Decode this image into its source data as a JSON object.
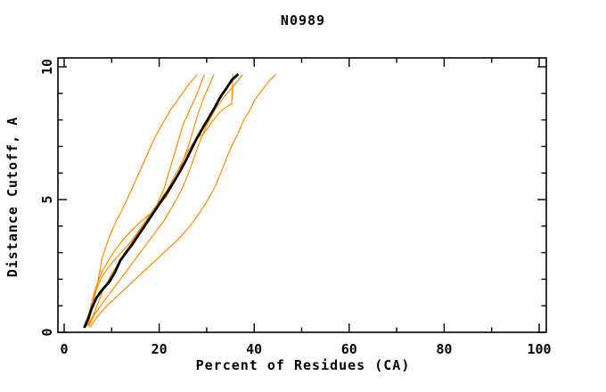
{
  "title": "N0989",
  "axes": {
    "xlabel": "Percent of Residues (CA)",
    "ylabel": "Distance Cutoff, A",
    "xlim": [
      0,
      100
    ],
    "ylim": [
      0,
      10
    ],
    "x_major_ticks": [
      0,
      20,
      40,
      60,
      80,
      100
    ],
    "x_minor_ticks": [
      10,
      30,
      50,
      70,
      90
    ],
    "x_tick_labels": [
      "0",
      "20",
      "40",
      "60",
      "80",
      "100"
    ],
    "y_major_ticks": [
      0,
      5,
      10
    ],
    "y_minor_ticks": [
      1,
      2,
      3,
      4,
      6,
      7,
      8,
      9
    ],
    "y_tick_labels": [
      "0",
      "5",
      "10"
    ]
  },
  "colors": {
    "orange_series": "#ff8c00",
    "black_series": "#000000"
  },
  "chart_data": {
    "type": "line",
    "title": "N0989",
    "xlabel": "Percent of Residues (CA)",
    "ylabel": "Distance Cutoff, A",
    "xlim": [
      0,
      100
    ],
    "ylim": [
      0,
      10
    ],
    "grid": false,
    "legend": "none",
    "series": [
      {
        "name": "orange-curve-1",
        "color": "#ff8c00",
        "width": 1.2,
        "points": [
          [
            5,
            0.3
          ],
          [
            6,
            1.0
          ],
          [
            7,
            1.8
          ],
          [
            8,
            2.8
          ],
          [
            9.5,
            3.6
          ],
          [
            11,
            4.2
          ],
          [
            12.7,
            4.8
          ],
          [
            14.5,
            5.5
          ],
          [
            16,
            6.1
          ],
          [
            17.5,
            6.7
          ],
          [
            19,
            7.3
          ],
          [
            20.5,
            7.8
          ],
          [
            22.5,
            8.4
          ],
          [
            24.5,
            8.9
          ],
          [
            26.5,
            9.4
          ],
          [
            28,
            9.7
          ]
        ]
      },
      {
        "name": "orange-curve-2",
        "color": "#ff8c00",
        "width": 1.2,
        "points": [
          [
            5,
            0.25
          ],
          [
            6.5,
            0.8
          ],
          [
            8,
            1.5
          ],
          [
            10,
            2.2
          ],
          [
            12.5,
            2.9
          ],
          [
            15,
            3.6
          ],
          [
            17.5,
            4.3
          ],
          [
            19.5,
            4.8
          ],
          [
            21,
            5.4
          ],
          [
            22,
            6.0
          ],
          [
            23,
            6.6
          ],
          [
            24,
            7.2
          ],
          [
            25,
            7.8
          ],
          [
            26.5,
            8.4
          ],
          [
            28,
            9.0
          ],
          [
            29.5,
            9.7
          ]
        ]
      },
      {
        "name": "orange-curve-3",
        "color": "#ff8c00",
        "width": 1.2,
        "points": [
          [
            4.5,
            0.2
          ],
          [
            5.5,
            0.9
          ],
          [
            6.5,
            1.6
          ],
          [
            8,
            2.3
          ],
          [
            10,
            2.9
          ],
          [
            12,
            3.4
          ],
          [
            14.5,
            3.9
          ],
          [
            17,
            4.3
          ],
          [
            19.5,
            4.7
          ],
          [
            21.5,
            5.1
          ],
          [
            23,
            5.6
          ],
          [
            24.3,
            6.1
          ],
          [
            25.3,
            6.6
          ],
          [
            26.3,
            7.1
          ],
          [
            27.3,
            7.7
          ],
          [
            28.3,
            8.3
          ],
          [
            29.3,
            8.8
          ],
          [
            30.3,
            9.2
          ],
          [
            31.5,
            9.7
          ]
        ]
      },
      {
        "name": "orange-curve-4",
        "color": "#ff8c00",
        "width": 1.2,
        "points": [
          [
            4.8,
            0.25
          ],
          [
            5.5,
            0.9
          ],
          [
            6.5,
            1.5
          ],
          [
            8,
            2.1
          ],
          [
            10,
            2.6
          ],
          [
            12,
            3.0
          ],
          [
            14,
            3.4
          ],
          [
            16,
            3.9
          ],
          [
            18,
            4.4
          ],
          [
            20,
            4.9
          ],
          [
            21.8,
            5.4
          ],
          [
            23.3,
            5.9
          ],
          [
            24.8,
            6.4
          ],
          [
            26.3,
            6.9
          ],
          [
            27.8,
            7.3
          ],
          [
            29.5,
            7.5
          ],
          [
            31,
            7.9
          ],
          [
            32.8,
            8.3
          ],
          [
            34.2,
            8.5
          ],
          [
            35.3,
            8.6
          ],
          [
            35.5,
            9.7
          ]
        ]
      },
      {
        "name": "orange-curve-5",
        "color": "#ff8c00",
        "width": 1.2,
        "points": [
          [
            5.2,
            0.25
          ],
          [
            6.5,
            0.7
          ],
          [
            8.5,
            1.2
          ],
          [
            11,
            1.8
          ],
          [
            13.5,
            2.4
          ],
          [
            16,
            3.0
          ],
          [
            18.5,
            3.6
          ],
          [
            21,
            4.2
          ],
          [
            23,
            4.8
          ],
          [
            24.8,
            5.4
          ],
          [
            26.2,
            6.0
          ],
          [
            27.4,
            6.6
          ],
          [
            28.6,
            7.2
          ],
          [
            30,
            7.8
          ],
          [
            31.8,
            8.4
          ],
          [
            33.8,
            8.9
          ],
          [
            35.8,
            9.3
          ],
          [
            37.5,
            9.7
          ]
        ]
      },
      {
        "name": "orange-curve-6",
        "color": "#ff8c00",
        "width": 1.2,
        "points": [
          [
            5.5,
            0.2
          ],
          [
            7,
            0.6
          ],
          [
            9,
            1.0
          ],
          [
            12,
            1.5
          ],
          [
            15,
            2.0
          ],
          [
            18,
            2.5
          ],
          [
            21,
            3.0
          ],
          [
            24,
            3.5
          ],
          [
            26.5,
            4.0
          ],
          [
            28.5,
            4.5
          ],
          [
            30.3,
            5.0
          ],
          [
            31.8,
            5.5
          ],
          [
            33.2,
            6.1
          ],
          [
            34.5,
            6.7
          ],
          [
            35.8,
            7.2
          ],
          [
            36.6,
            7.5
          ],
          [
            37.8,
            8.0
          ],
          [
            38.9,
            8.3
          ],
          [
            40.3,
            8.8
          ],
          [
            42,
            9.2
          ],
          [
            43.3,
            9.5
          ],
          [
            44.5,
            9.7
          ]
        ]
      },
      {
        "name": "black-bold-curve",
        "color": "#000000",
        "width": 2.8,
        "points": [
          [
            4.3,
            0.2
          ],
          [
            5,
            0.5
          ],
          [
            5.8,
            0.9
          ],
          [
            6.8,
            1.3
          ],
          [
            8,
            1.6
          ],
          [
            9.5,
            1.9
          ],
          [
            10.8,
            2.3
          ],
          [
            11.8,
            2.7
          ],
          [
            13,
            3.0
          ],
          [
            14.3,
            3.3
          ],
          [
            15.8,
            3.7
          ],
          [
            17.3,
            4.1
          ],
          [
            18.8,
            4.5
          ],
          [
            20.3,
            4.9
          ],
          [
            21.8,
            5.3
          ],
          [
            23.2,
            5.7
          ],
          [
            24.5,
            6.1
          ],
          [
            25.7,
            6.5
          ],
          [
            26.8,
            6.9
          ],
          [
            27.9,
            7.3
          ],
          [
            29.2,
            7.7
          ],
          [
            30.5,
            8.1
          ],
          [
            31.8,
            8.5
          ],
          [
            33,
            8.9
          ],
          [
            34.2,
            9.2
          ],
          [
            35.3,
            9.5
          ],
          [
            36.5,
            9.7
          ]
        ]
      }
    ]
  }
}
